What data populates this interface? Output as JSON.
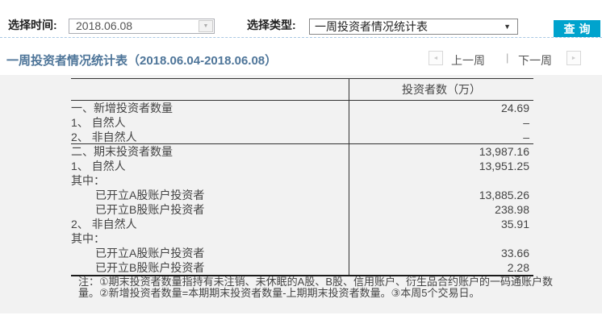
{
  "filters": {
    "time_label": "选择时间:",
    "time_value": "2018.06.08",
    "type_label": "选择类型:",
    "type_value": "一周投资者情况统计表",
    "query_button": "查询",
    "dropdown_caret": "▼",
    "input_caret": "▼"
  },
  "report": {
    "title": "一周投资者情况统计表（2018.06.04-2018.06.08）",
    "prev_week": "上一周",
    "next_week": "下一周",
    "separator": "|",
    "prev_arrow": "◄",
    "next_arrow": "►"
  },
  "table": {
    "value_header": "投资者数（万）",
    "rows": [
      {
        "label": "一、新增投资者数量",
        "value": "24.69",
        "indent": 0,
        "section_end": false
      },
      {
        "label": "1、 自然人",
        "value": "–",
        "indent": 0,
        "section_end": false
      },
      {
        "label": "2、 非自然人",
        "value": "–",
        "indent": 0,
        "section_end": true
      },
      {
        "label": "二、期末投资者数量",
        "value": "13,987.16",
        "indent": 0,
        "section_end": false
      },
      {
        "label": "1、 自然人",
        "value": "13,951.25",
        "indent": 0,
        "section_end": false
      },
      {
        "label": "其中：",
        "value": "",
        "indent": 0,
        "section_end": false
      },
      {
        "label": "已开立A股账户投资者",
        "value": "13,885.26",
        "indent": 1,
        "section_end": false
      },
      {
        "label": "已开立B股账户投资者",
        "value": "238.98",
        "indent": 1,
        "section_end": false
      },
      {
        "label": "2、 非自然人",
        "value": "35.91",
        "indent": 0,
        "section_end": false
      },
      {
        "label": "其中：",
        "value": "",
        "indent": 0,
        "section_end": false
      },
      {
        "label": "已开立A股账户投资者",
        "value": "33.66",
        "indent": 1,
        "section_end": false
      },
      {
        "label": "已开立B股账户投资者",
        "value": "2.28",
        "indent": 1,
        "section_end": false
      }
    ],
    "footnote": "注：①期末投资者数量指持有未注销、未休眠的A股、B股、信用账户、衍生品合约账户的一码通账户数量。②新增投资者数量=本期期末投资者数量-上期期末投资者数量。③本周5个交易日。"
  },
  "colors": {
    "query_button_bg": "#00a3cd",
    "title_text": "#4e7599",
    "dashed_divider": "#a9c9e5",
    "panel_bg": "#f2f2f2",
    "table_border": "#333333"
  }
}
